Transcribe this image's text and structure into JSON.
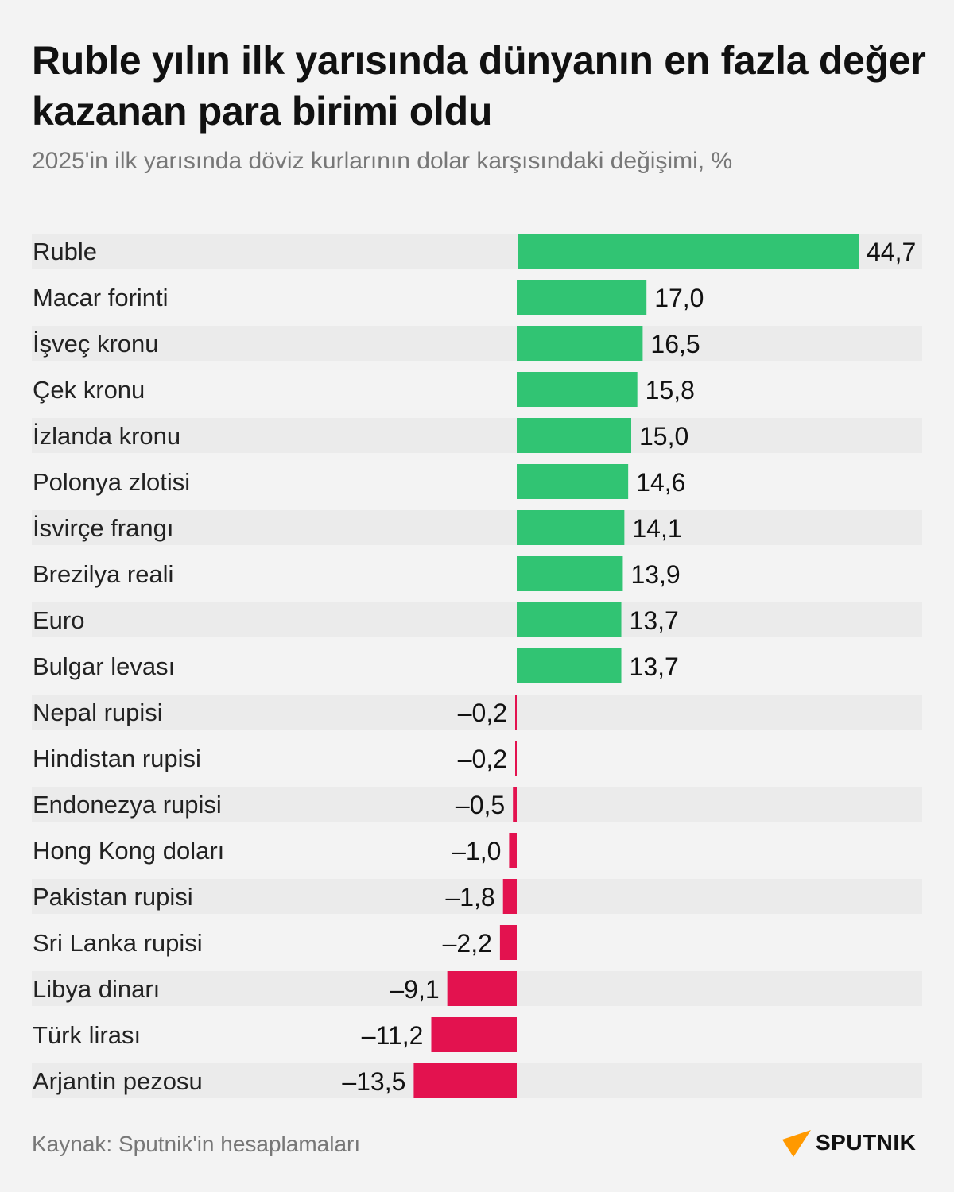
{
  "title": "Ruble yılın ilk yarısında dünyanın en fazla değer kazanan para birimi oldu",
  "subtitle": "2025'in ilk yarısında döviz kurlarının dolar karşısındaki değişimi, %",
  "source": "Kaynak: Sputnik'in hesaplamaları",
  "logo": "SPUTNIK",
  "colors": {
    "positive": "#31c473",
    "negative": "#e3124f",
    "row_band": "#ebebeb",
    "logo_accent": "#ff9900"
  },
  "chart_data": {
    "type": "bar",
    "orientation": "horizontal",
    "categories": [
      "Ruble",
      "Macar forinti",
      "İşveç kronu",
      "Çek kronu",
      "İzlanda kronu",
      "Polonya zlotisi",
      "İsvirçe frangı",
      "Brezilya reali",
      "Euro",
      "Bulgar levası",
      "Nepal rupisi",
      "Hindistan rupisi",
      "Endonezya rupisi",
      "Hong Kong doları",
      "Pakistan rupisi",
      "Sri Lanka rupisi",
      "Libya dinarı",
      "Türk lirası",
      "Arjantin pezosu"
    ],
    "values": [
      44.7,
      17.0,
      16.5,
      15.8,
      15.0,
      14.6,
      14.1,
      13.9,
      13.7,
      13.7,
      -0.2,
      -0.2,
      -0.5,
      -1.0,
      -1.8,
      -2.2,
      -9.1,
      -11.2,
      -13.5
    ],
    "labels": [
      "44,7",
      "17,0",
      "16,5",
      "15,8",
      "15,0",
      "14,6",
      "14,1",
      "13,9",
      "13,7",
      "13,7",
      "–0,2",
      "–0,2",
      "–0,5",
      "–1,0",
      "–1,8",
      "–2,2",
      "–9,1",
      "–11,2",
      "–13,5"
    ],
    "grid": false,
    "legend": "none"
  }
}
